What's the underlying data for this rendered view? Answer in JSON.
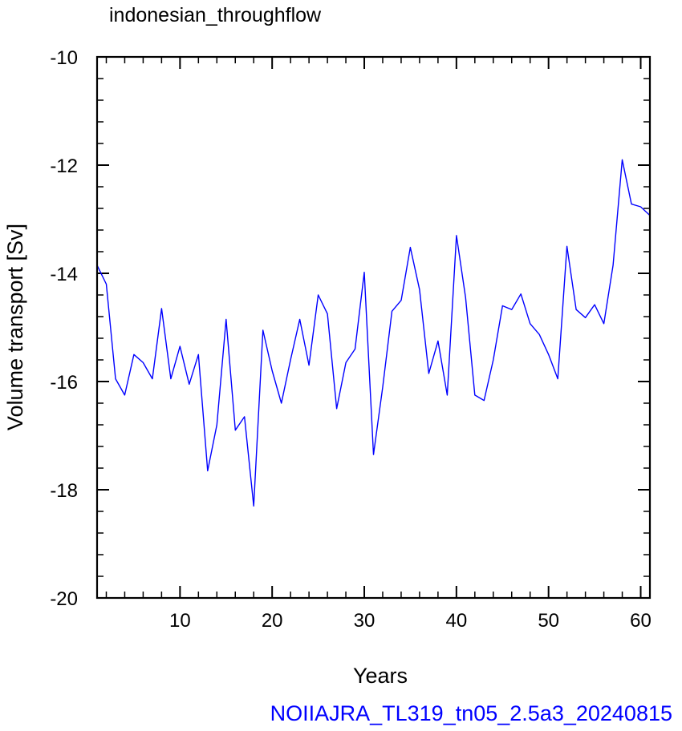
{
  "chart_data": {
    "type": "line",
    "title": "indonesian_throughflow",
    "xlabel": "Years",
    "ylabel": "Volume transport [Sv]",
    "footer": "NOIIAJRA_TL319_tn05_2.5a3_20240815",
    "xlim": [
      1,
      61
    ],
    "ylim": [
      -20,
      -10
    ],
    "x_ticks": [
      10,
      20,
      30,
      40,
      50,
      60
    ],
    "y_ticks": [
      -20,
      -18,
      -16,
      -14,
      -12,
      -10
    ],
    "x_tick_labels": [
      "10",
      "20",
      "30",
      "40",
      "50",
      "60"
    ],
    "y_tick_labels": [
      "-20",
      "-18",
      "-16",
      "-14",
      "-12",
      "-10"
    ],
    "grid": false,
    "series_color": "#0000ff",
    "footer_color": "#0000ff",
    "series": [
      {
        "x": [
          1,
          2,
          3,
          4,
          5,
          6,
          7,
          8,
          9,
          10,
          11,
          12,
          13,
          14,
          15,
          16,
          17,
          18,
          19,
          20,
          21,
          22,
          23,
          24,
          25,
          26,
          27,
          28,
          29,
          30,
          31,
          32,
          33,
          34,
          35,
          36,
          37,
          38,
          39,
          40,
          41,
          42,
          43,
          44,
          45,
          46,
          47,
          48,
          49,
          50,
          51,
          52,
          53,
          54,
          55,
          56,
          57,
          58,
          59,
          60,
          61
        ],
        "values": [
          -13.85,
          -14.2,
          -15.95,
          -16.25,
          -15.5,
          -15.65,
          -15.95,
          -14.65,
          -15.95,
          -15.35,
          -16.05,
          -15.5,
          -17.65,
          -16.8,
          -14.85,
          -16.9,
          -16.65,
          -18.3,
          -15.05,
          -15.8,
          -16.4,
          -15.6,
          -14.85,
          -15.7,
          -14.4,
          -14.75,
          -16.5,
          -15.65,
          -15.4,
          -13.98,
          -17.35,
          -16.1,
          -14.7,
          -14.5,
          -13.52,
          -14.3,
          -15.85,
          -15.25,
          -16.25,
          -13.3,
          -14.45,
          -16.25,
          -16.35,
          -15.6,
          -14.6,
          -14.67,
          -14.38,
          -14.93,
          -15.13,
          -15.5,
          -15.95,
          -13.5,
          -14.67,
          -14.82,
          -14.58,
          -14.93,
          -13.85,
          -11.9,
          -12.72,
          -12.77,
          -12.93
        ]
      }
    ]
  }
}
